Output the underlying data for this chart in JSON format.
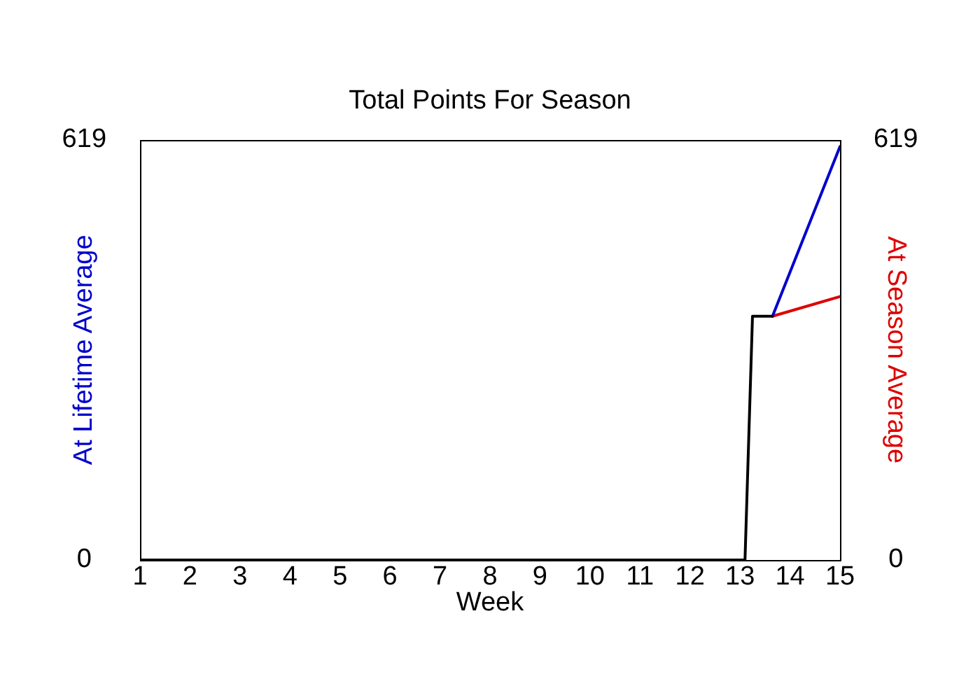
{
  "chart_data": {
    "type": "line",
    "title": "Total Points For Season",
    "xlabel": "Week",
    "ylabel": "At Lifetime Average",
    "y2label": "At Season Average",
    "xlim": [
      1,
      15
    ],
    "xticks": [
      1,
      2,
      3,
      4,
      5,
      6,
      7,
      8,
      9,
      10,
      11,
      12,
      13,
      14,
      15
    ],
    "ylim": [
      0,
      619
    ],
    "yticks": [
      0,
      619
    ],
    "y2lim": [
      0,
      619
    ],
    "y2ticks": [
      0,
      619
    ],
    "series": [
      {
        "color": "#000000",
        "x": [
          1,
          13.1,
          13.25,
          13.65
        ],
        "values": [
          0,
          0,
          359,
          359
        ]
      },
      {
        "color": "#0000cc",
        "x": [
          13.65,
          15
        ],
        "values": [
          359,
          609
        ]
      },
      {
        "color": "#dd0000",
        "x": [
          13.65,
          15
        ],
        "values": [
          359,
          388
        ],
        "axis": "y2"
      }
    ]
  }
}
